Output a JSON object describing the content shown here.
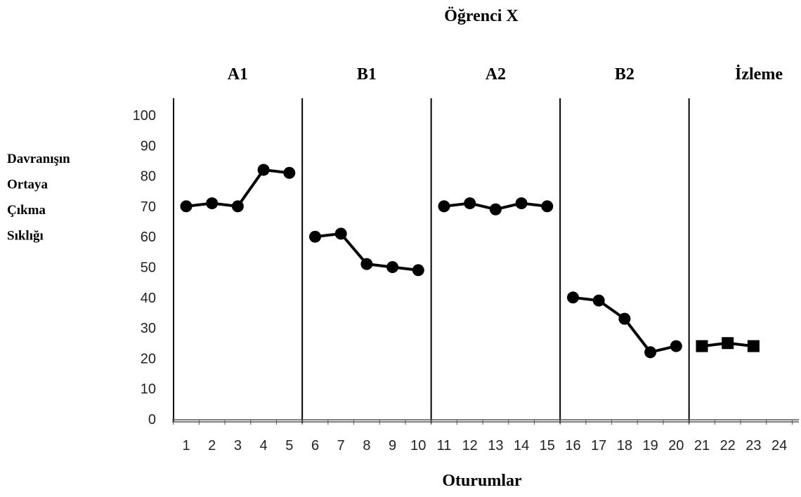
{
  "chart_data": {
    "type": "line",
    "title": "Öğrenci X",
    "xlabel": "Oturumlar",
    "ylabel_lines": [
      "Davranışın",
      "Ortaya",
      "Çıkma",
      "Sıklığı"
    ],
    "ylim": [
      0,
      100
    ],
    "yticks": [
      0,
      10,
      20,
      30,
      40,
      50,
      60,
      70,
      80,
      90,
      100
    ],
    "xticks": [
      1,
      2,
      3,
      4,
      5,
      6,
      7,
      8,
      9,
      10,
      11,
      12,
      13,
      14,
      15,
      16,
      17,
      18,
      19,
      20,
      21,
      22,
      23,
      24
    ],
    "phases": [
      {
        "label": "A1",
        "sessions": [
          1,
          5
        ]
      },
      {
        "label": "B1",
        "sessions": [
          6,
          10
        ]
      },
      {
        "label": "A2",
        "sessions": [
          11,
          15
        ]
      },
      {
        "label": "B2",
        "sessions": [
          16,
          20
        ]
      },
      {
        "label": "İzleme",
        "sessions": [
          21,
          24
        ]
      }
    ],
    "phase_change_lines_after_session": [
      5,
      10,
      15,
      20
    ],
    "series": [
      {
        "marker": "circle",
        "color": "#000000",
        "x": [
          1,
          2,
          3,
          4,
          5
        ],
        "y": [
          70,
          71,
          70,
          82,
          81
        ]
      },
      {
        "marker": "circle",
        "color": "#000000",
        "x": [
          6,
          7,
          8,
          9,
          10
        ],
        "y": [
          60,
          61,
          51,
          50,
          49
        ]
      },
      {
        "marker": "circle",
        "color": "#000000",
        "x": [
          11,
          12,
          13,
          14,
          15
        ],
        "y": [
          70,
          71,
          69,
          71,
          70
        ]
      },
      {
        "marker": "circle",
        "color": "#000000",
        "x": [
          16,
          17,
          18,
          19,
          20
        ],
        "y": [
          40,
          39,
          33,
          22,
          24
        ]
      },
      {
        "marker": "square",
        "color": "#000000",
        "x": [
          21,
          22,
          23
        ],
        "y": [
          24,
          25,
          24
        ]
      }
    ],
    "grid": false
  }
}
